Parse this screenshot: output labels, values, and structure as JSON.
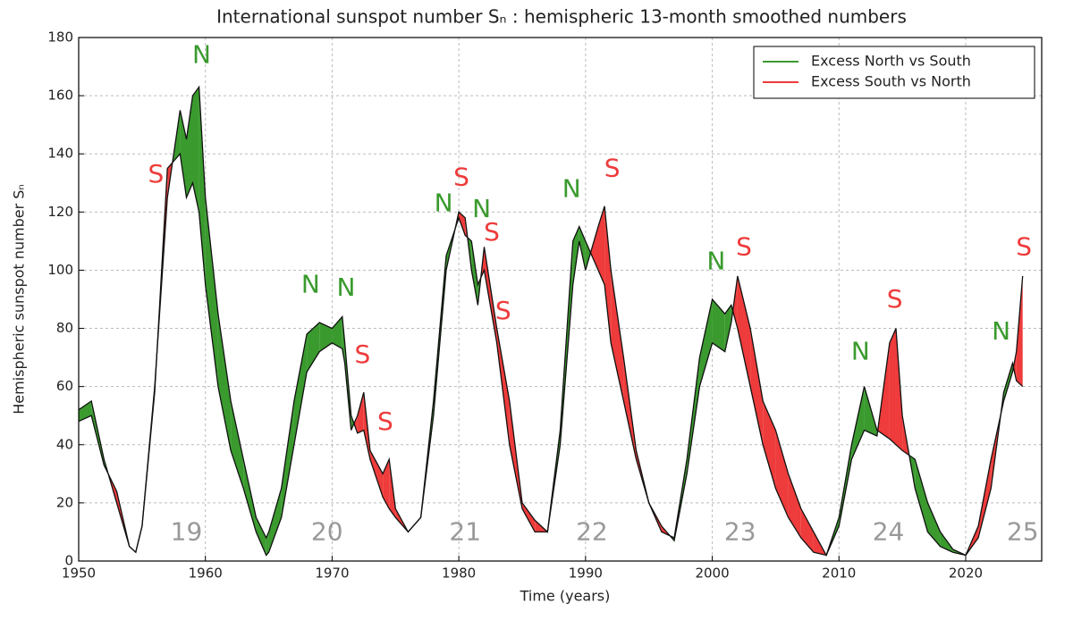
{
  "chart_data": {
    "type": "hemispheric-area",
    "title": "International sunspot number Sₙ : hemispheric 13-month smoothed numbers",
    "x_label": "Time (years)",
    "y_label": "Hemispheric sunspot number Sₙ",
    "x": [
      1950,
      1951,
      1952,
      1953,
      1954,
      1954.5,
      1955,
      1956,
      1957,
      1958,
      1958.5,
      1959,
      1959.5,
      1960,
      1961,
      1962,
      1963,
      1964,
      1964.8,
      1965,
      1966,
      1967,
      1968,
      1969,
      1970,
      1970.8,
      1971,
      1971.5,
      1972,
      1972.5,
      1973,
      1974,
      1974.5,
      1975,
      1976,
      1977,
      1978,
      1979,
      1980,
      1980.5,
      1981,
      1981.5,
      1982,
      1983,
      1984,
      1985,
      1986,
      1987,
      1988,
      1989,
      1989.5,
      1990,
      1991,
      1991.5,
      1992,
      1993,
      1994,
      1995,
      1996,
      1997,
      1998,
      1999,
      2000,
      2001,
      2001.5,
      2002,
      2003,
      2004,
      2005,
      2006,
      2007,
      2008,
      2009,
      2010,
      2011,
      2012,
      2013,
      2014,
      2014.5,
      2015,
      2016,
      2017,
      2018,
      2019,
      2020,
      2021,
      2022,
      2023,
      2023.7,
      2024,
      2024.5
    ],
    "series": [
      {
        "name": "Excess North vs South",
        "color": "#3a9a2e",
        "values": [
          52,
          55,
          35,
          20,
          5,
          3,
          12,
          60,
          125,
          155,
          145,
          160,
          163,
          125,
          85,
          55,
          35,
          15,
          8,
          10,
          25,
          55,
          78,
          82,
          80,
          84,
          75,
          50,
          44,
          45,
          35,
          22,
          18,
          15,
          10,
          15,
          55,
          105,
          118,
          112,
          110,
          95,
          100,
          75,
          40,
          18,
          10,
          10,
          45,
          110,
          115,
          110,
          100,
          95,
          75,
          55,
          35,
          20,
          10,
          8,
          35,
          70,
          90,
          85,
          88,
          80,
          60,
          40,
          25,
          15,
          8,
          3,
          2,
          15,
          40,
          60,
          45,
          42,
          40,
          38,
          35,
          20,
          10,
          4,
          2,
          8,
          25,
          58,
          68,
          62,
          60
        ]
      },
      {
        "name": "Excess South vs North",
        "color": "#ee3b3b",
        "values": [
          48,
          50,
          33,
          24,
          5,
          3,
          12,
          58,
          135,
          140,
          125,
          130,
          120,
          95,
          60,
          38,
          25,
          10,
          2,
          3,
          15,
          40,
          65,
          72,
          75,
          73,
          68,
          45,
          50,
          58,
          38,
          30,
          35,
          18,
          10,
          15,
          50,
          100,
          120,
          118,
          100,
          88,
          108,
          80,
          55,
          20,
          14,
          10,
          40,
          95,
          110,
          100,
          115,
          122,
          100,
          70,
          38,
          20,
          12,
          7,
          30,
          60,
          75,
          72,
          82,
          98,
          80,
          55,
          45,
          30,
          18,
          10,
          2,
          12,
          35,
          45,
          43,
          75,
          80,
          50,
          25,
          10,
          5,
          3,
          2,
          12,
          35,
          55,
          65,
          72,
          98
        ]
      }
    ],
    "xlim": [
      1950,
      2026
    ],
    "ylim": [
      0,
      180
    ],
    "xticks": [
      1950,
      1960,
      1970,
      1980,
      1990,
      2000,
      2010,
      2020
    ],
    "yticks": [
      0,
      20,
      40,
      60,
      80,
      100,
      120,
      140,
      160,
      180
    ],
    "grid": true,
    "legend": "upper right",
    "annotations": [
      {
        "text": "N",
        "x": 1959.7,
        "y": 170,
        "color": "#3a9a2e"
      },
      {
        "text": "S",
        "x": 1956.1,
        "y": 129,
        "color": "#ee3b3b"
      },
      {
        "text": "N",
        "x": 1968.3,
        "y": 91,
        "color": "#3a9a2e"
      },
      {
        "text": "N",
        "x": 1971.1,
        "y": 90,
        "color": "#3a9a2e"
      },
      {
        "text": "S",
        "x": 1972.4,
        "y": 67,
        "color": "#ee3b3b"
      },
      {
        "text": "S",
        "x": 1974.2,
        "y": 44,
        "color": "#ee3b3b"
      },
      {
        "text": "N",
        "x": 1978.8,
        "y": 119,
        "color": "#3a9a2e"
      },
      {
        "text": "S",
        "x": 1980.2,
        "y": 128,
        "color": "#ee3b3b"
      },
      {
        "text": "N",
        "x": 1981.8,
        "y": 117,
        "color": "#3a9a2e"
      },
      {
        "text": "S",
        "x": 1982.6,
        "y": 109,
        "color": "#ee3b3b"
      },
      {
        "text": "S",
        "x": 1983.5,
        "y": 82,
        "color": "#ee3b3b"
      },
      {
        "text": "N",
        "x": 1988.9,
        "y": 124,
        "color": "#3a9a2e"
      },
      {
        "text": "S",
        "x": 1992.1,
        "y": 131,
        "color": "#ee3b3b"
      },
      {
        "text": "N",
        "x": 2000.3,
        "y": 99,
        "color": "#3a9a2e"
      },
      {
        "text": "S",
        "x": 2002.5,
        "y": 104,
        "color": "#ee3b3b"
      },
      {
        "text": "N",
        "x": 2011.7,
        "y": 68,
        "color": "#3a9a2e"
      },
      {
        "text": "S",
        "x": 2014.4,
        "y": 86,
        "color": "#ee3b3b"
      },
      {
        "text": "N",
        "x": 2022.8,
        "y": 75,
        "color": "#3a9a2e"
      },
      {
        "text": "S",
        "x": 2024.6,
        "y": 104,
        "color": "#ee3b3b"
      },
      {
        "text": "19",
        "x": 1958.5,
        "y": 6,
        "color": "#999999"
      },
      {
        "text": "20",
        "x": 1969.6,
        "y": 6,
        "color": "#999999"
      },
      {
        "text": "21",
        "x": 1980.5,
        "y": 6,
        "color": "#999999"
      },
      {
        "text": "22",
        "x": 1990.5,
        "y": 6,
        "color": "#999999"
      },
      {
        "text": "23",
        "x": 2002.2,
        "y": 6,
        "color": "#999999"
      },
      {
        "text": "24",
        "x": 2013.9,
        "y": 6,
        "color": "#999999"
      },
      {
        "text": "25",
        "x": 2024.5,
        "y": 6,
        "color": "#999999"
      }
    ]
  }
}
